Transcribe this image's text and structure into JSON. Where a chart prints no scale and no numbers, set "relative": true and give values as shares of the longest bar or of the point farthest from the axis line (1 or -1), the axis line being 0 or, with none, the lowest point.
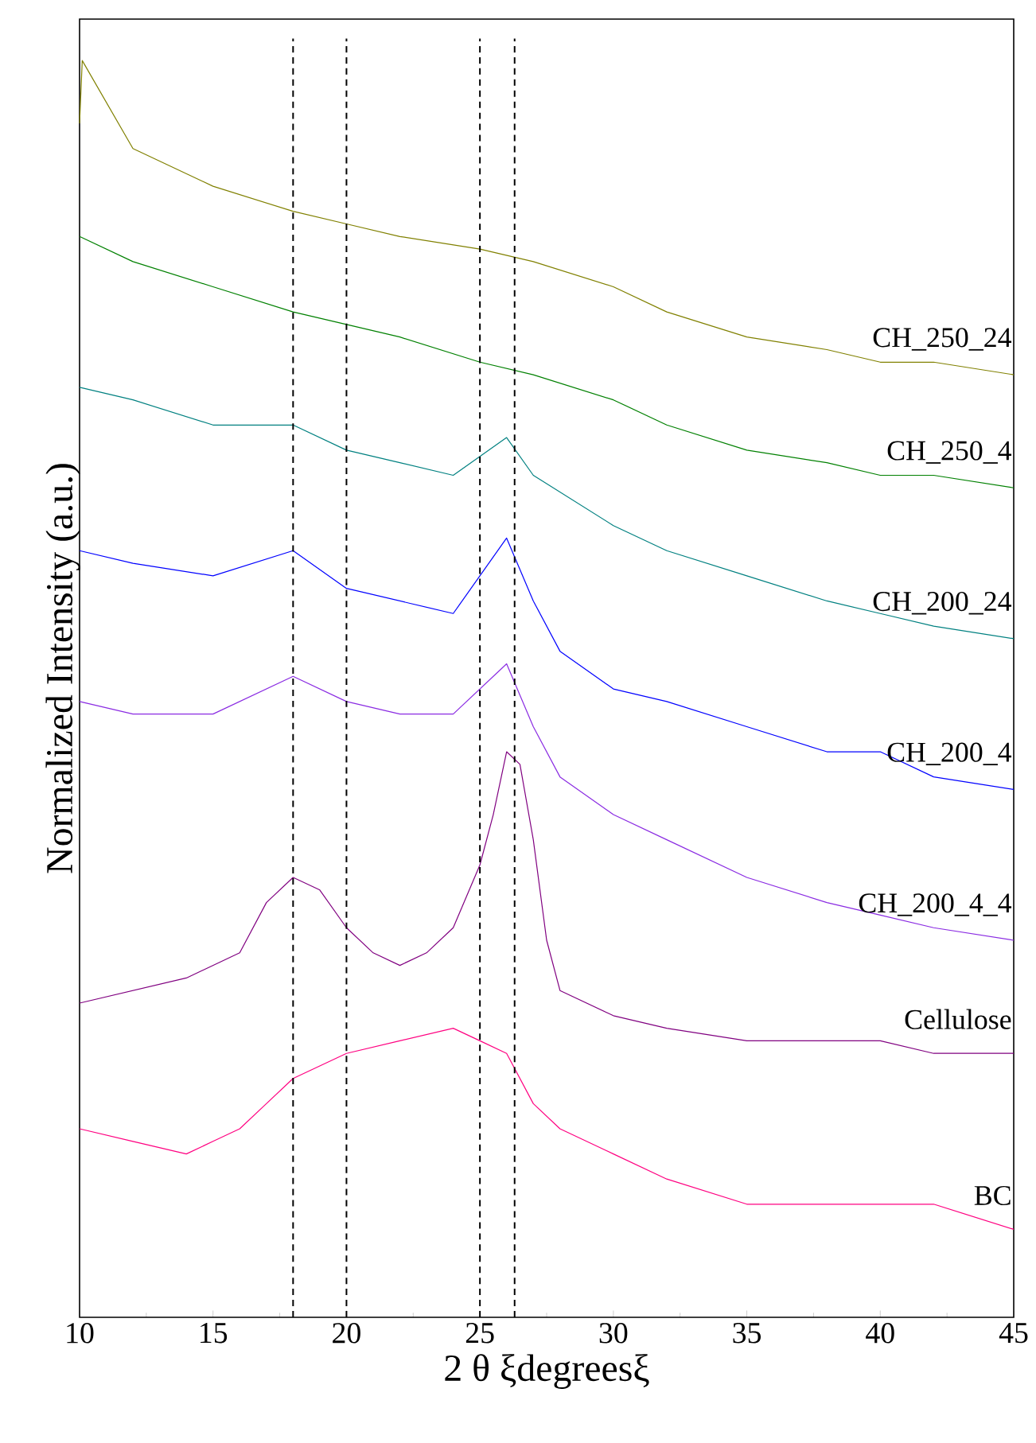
{
  "chart_data": {
    "type": "line",
    "relative": true,
    "xlabel": "2 θ ξdegreesξ",
    "ylabel": "Normalized Intensity (a.u.)",
    "xlim": [
      10,
      45
    ],
    "xticks": [
      10,
      15,
      20,
      25,
      30,
      35,
      40,
      45
    ],
    "grid": false,
    "marker": "none",
    "line_style": "solid",
    "series": [
      {
        "name": "CH_250_24",
        "color": "#808000",
        "x": [
          10,
          10.1,
          12,
          15,
          18,
          20,
          22,
          25,
          27,
          30,
          32,
          35,
          38,
          40,
          42,
          45
        ],
        "values": [
          0.95,
          1,
          0.93,
          0.9,
          0.88,
          0.87,
          0.86,
          0.85,
          0.84,
          0.82,
          0.8,
          0.78,
          0.77,
          0.76,
          0.76,
          0.75
        ]
      },
      {
        "name": "CH_250_4",
        "color": "#008000",
        "x": [
          10,
          12,
          15,
          18,
          20,
          22,
          25,
          27,
          30,
          32,
          35,
          38,
          40,
          42,
          45
        ],
        "values": [
          0.86,
          0.84,
          0.82,
          0.8,
          0.79,
          0.78,
          0.76,
          0.75,
          0.73,
          0.71,
          0.69,
          0.68,
          0.67,
          0.67,
          0.66
        ]
      },
      {
        "name": "CH_200_24",
        "color": "#008080",
        "x": [
          10,
          12,
          15,
          18,
          20,
          22,
          24,
          26,
          27,
          30,
          32,
          35,
          38,
          40,
          42,
          45
        ],
        "values": [
          0.74,
          0.73,
          0.71,
          0.71,
          0.69,
          0.68,
          0.67,
          0.7,
          0.67,
          0.63,
          0.61,
          0.59,
          0.57,
          0.56,
          0.55,
          0.54
        ]
      },
      {
        "name": "CH_200_4",
        "color": "#0000ff",
        "x": [
          10,
          12,
          15,
          18,
          20,
          22,
          24,
          26,
          27,
          28,
          30,
          32,
          35,
          38,
          40,
          42,
          45
        ],
        "values": [
          0.61,
          0.6,
          0.59,
          0.61,
          0.58,
          0.57,
          0.56,
          0.62,
          0.57,
          0.53,
          0.5,
          0.49,
          0.47,
          0.45,
          0.45,
          0.43,
          0.42
        ]
      },
      {
        "name": "CH_200_4_4",
        "color": "#8a2be2",
        "x": [
          10,
          12,
          15,
          18,
          20,
          22,
          24,
          26,
          27,
          28,
          30,
          32,
          35,
          38,
          40,
          42,
          45
        ],
        "values": [
          0.49,
          0.48,
          0.48,
          0.51,
          0.49,
          0.48,
          0.48,
          0.52,
          0.47,
          0.43,
          0.4,
          0.38,
          0.35,
          0.33,
          0.32,
          0.31,
          0.3
        ]
      },
      {
        "name": "Cellulose",
        "color": "#800080",
        "x": [
          10,
          12,
          14,
          16,
          17,
          18,
          19,
          20,
          21,
          22,
          23,
          24,
          25,
          25.5,
          26,
          26.5,
          27,
          27.5,
          28,
          30,
          32,
          35,
          38,
          40,
          42,
          45
        ],
        "values": [
          0.25,
          0.26,
          0.27,
          0.29,
          0.33,
          0.35,
          0.34,
          0.31,
          0.29,
          0.28,
          0.29,
          0.31,
          0.36,
          0.4,
          0.45,
          0.44,
          0.38,
          0.3,
          0.26,
          0.24,
          0.23,
          0.22,
          0.22,
          0.22,
          0.21,
          0.21
        ]
      },
      {
        "name": "BC",
        "color": "#ff0080",
        "x": [
          10,
          12,
          14,
          15,
          16,
          17,
          18,
          20,
          22,
          24,
          25,
          26,
          27,
          28,
          30,
          32,
          35,
          38,
          40,
          42,
          45
        ],
        "values": [
          0.15,
          0.14,
          0.13,
          0.14,
          0.15,
          0.17,
          0.19,
          0.21,
          0.22,
          0.23,
          0.22,
          0.21,
          0.17,
          0.15,
          0.13,
          0.11,
          0.09,
          0.09,
          0.09,
          0.09,
          0.07
        ]
      }
    ],
    "ref_lines": [
      {
        "axis": "x",
        "value": 18,
        "color": "#000000",
        "line_style": "dashed"
      },
      {
        "axis": "x",
        "value": 20,
        "color": "#000000",
        "line_style": "dashed"
      },
      {
        "axis": "x",
        "value": 25,
        "color": "#000000",
        "line_style": "dashed"
      },
      {
        "axis": "x",
        "value": 26.3,
        "color": "#000000",
        "line_style": "dashed"
      }
    ]
  }
}
